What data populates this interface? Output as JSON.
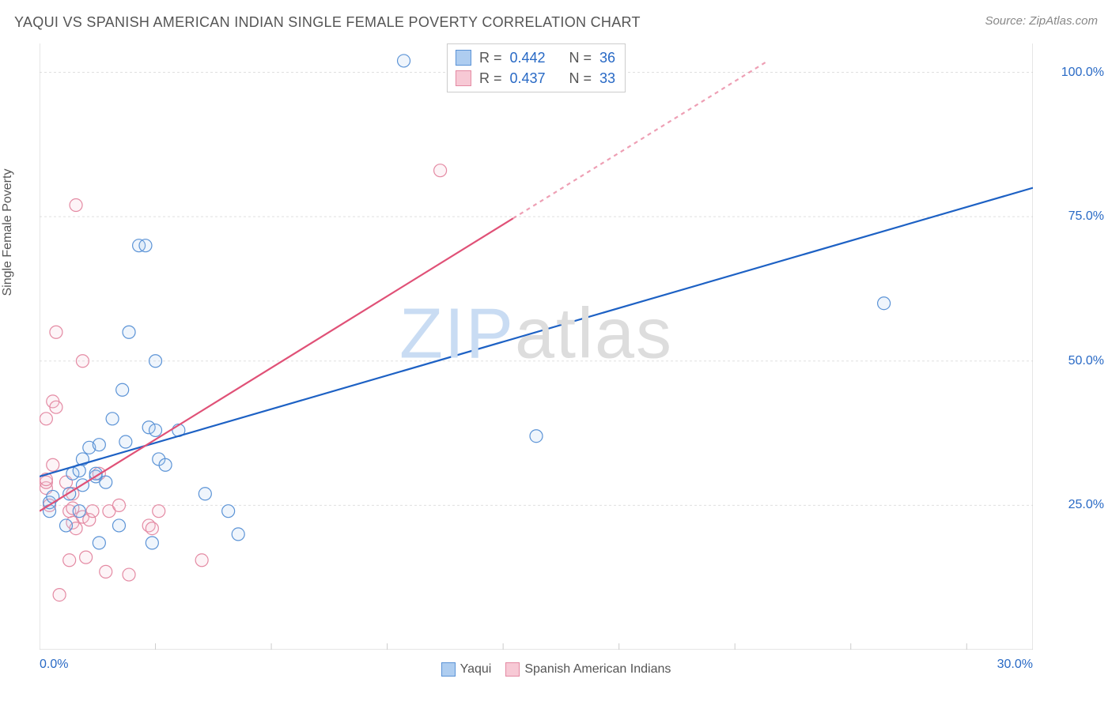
{
  "title": "YAQUI VS SPANISH AMERICAN INDIAN SINGLE FEMALE POVERTY CORRELATION CHART",
  "source_label": "Source: ZipAtlas.com",
  "y_axis_label": "Single Female Poverty",
  "watermark_part1": "ZIP",
  "watermark_part2": "atlas",
  "chart": {
    "type": "scatter",
    "xlim": [
      0,
      30
    ],
    "ylim": [
      0,
      105
    ],
    "x_ticks": [
      0,
      30
    ],
    "x_tick_labels": [
      "0.0%",
      "30.0%"
    ],
    "x_minor_tick_positions": [
      3.5,
      7.0,
      10.5,
      14.0,
      17.5,
      21.0,
      24.5,
      28.0
    ],
    "y_ticks": [
      25,
      50,
      75,
      100
    ],
    "y_tick_labels": [
      "25.0%",
      "50.0%",
      "75.0%",
      "100.0%"
    ],
    "background_color": "#ffffff",
    "grid_color": "#e0e0e0",
    "axis_color": "#cccccc",
    "marker_radius": 8,
    "marker_stroke_width": 1.2,
    "marker_fill_opacity": 0.2,
    "line_width": 2.2,
    "dash_pattern": "5 5"
  },
  "series": [
    {
      "name": "Yaqui",
      "color_stroke": "#5b93d6",
      "color_fill": "#aecdf0",
      "line_color": "#1d61c4",
      "r": "0.442",
      "n": "36",
      "trend_start": {
        "x": 0,
        "y": 30
      },
      "trend_end": {
        "x": 30,
        "y": 80
      },
      "points": [
        [
          0.3,
          24
        ],
        [
          0.3,
          25.5
        ],
        [
          0.4,
          26.5
        ],
        [
          0.8,
          21.5
        ],
        [
          0.9,
          27
        ],
        [
          1.0,
          30.5
        ],
        [
          1.2,
          31
        ],
        [
          1.2,
          24
        ],
        [
          1.3,
          28.5
        ],
        [
          1.3,
          33
        ],
        [
          1.5,
          35
        ],
        [
          1.7,
          30
        ],
        [
          1.7,
          30.5
        ],
        [
          1.8,
          35.5
        ],
        [
          1.8,
          18.5
        ],
        [
          2.0,
          29
        ],
        [
          2.2,
          40
        ],
        [
          2.4,
          21.5
        ],
        [
          2.5,
          45
        ],
        [
          2.6,
          36
        ],
        [
          2.7,
          55
        ],
        [
          3.0,
          70
        ],
        [
          3.2,
          70
        ],
        [
          3.3,
          38.5
        ],
        [
          3.4,
          18.5
        ],
        [
          3.5,
          50
        ],
        [
          3.5,
          38
        ],
        [
          3.6,
          33
        ],
        [
          3.8,
          32
        ],
        [
          4.2,
          38
        ],
        [
          5.0,
          27
        ],
        [
          5.7,
          24
        ],
        [
          6.0,
          20
        ],
        [
          11.0,
          102
        ],
        [
          15.0,
          37
        ],
        [
          25.5,
          60
        ]
      ]
    },
    {
      "name": "Spanish American Indians",
      "color_stroke": "#e48aa3",
      "color_fill": "#f7c9d5",
      "line_color": "#e05177",
      "r": "0.437",
      "n": "33",
      "trend_start": {
        "x": 0,
        "y": 24
      },
      "trend_end": {
        "x": 22,
        "y": 102
      },
      "trend_solid_until_x": 14.3,
      "points": [
        [
          0.2,
          28
        ],
        [
          0.2,
          29
        ],
        [
          0.2,
          29.5
        ],
        [
          0.2,
          40
        ],
        [
          0.3,
          25
        ],
        [
          0.4,
          32
        ],
        [
          0.4,
          43
        ],
        [
          0.5,
          42
        ],
        [
          0.5,
          55
        ],
        [
          0.6,
          9.5
        ],
        [
          0.8,
          29
        ],
        [
          0.9,
          15.5
        ],
        [
          0.9,
          24
        ],
        [
          1.0,
          22
        ],
        [
          1.0,
          24.5
        ],
        [
          1.0,
          27
        ],
        [
          1.1,
          21
        ],
        [
          1.1,
          77
        ],
        [
          1.3,
          23
        ],
        [
          1.3,
          50
        ],
        [
          1.4,
          16
        ],
        [
          1.5,
          22.5
        ],
        [
          1.6,
          24
        ],
        [
          1.8,
          30.5
        ],
        [
          2.0,
          13.5
        ],
        [
          2.1,
          24
        ],
        [
          2.4,
          25
        ],
        [
          2.7,
          13
        ],
        [
          3.3,
          21.5
        ],
        [
          3.4,
          21
        ],
        [
          3.6,
          24
        ],
        [
          4.9,
          15.5
        ],
        [
          12.1,
          83
        ]
      ]
    }
  ],
  "legend": {
    "series1_label": "Yaqui",
    "series2_label": "Spanish American Indians",
    "r_label": "R =",
    "n_label": "N ="
  }
}
